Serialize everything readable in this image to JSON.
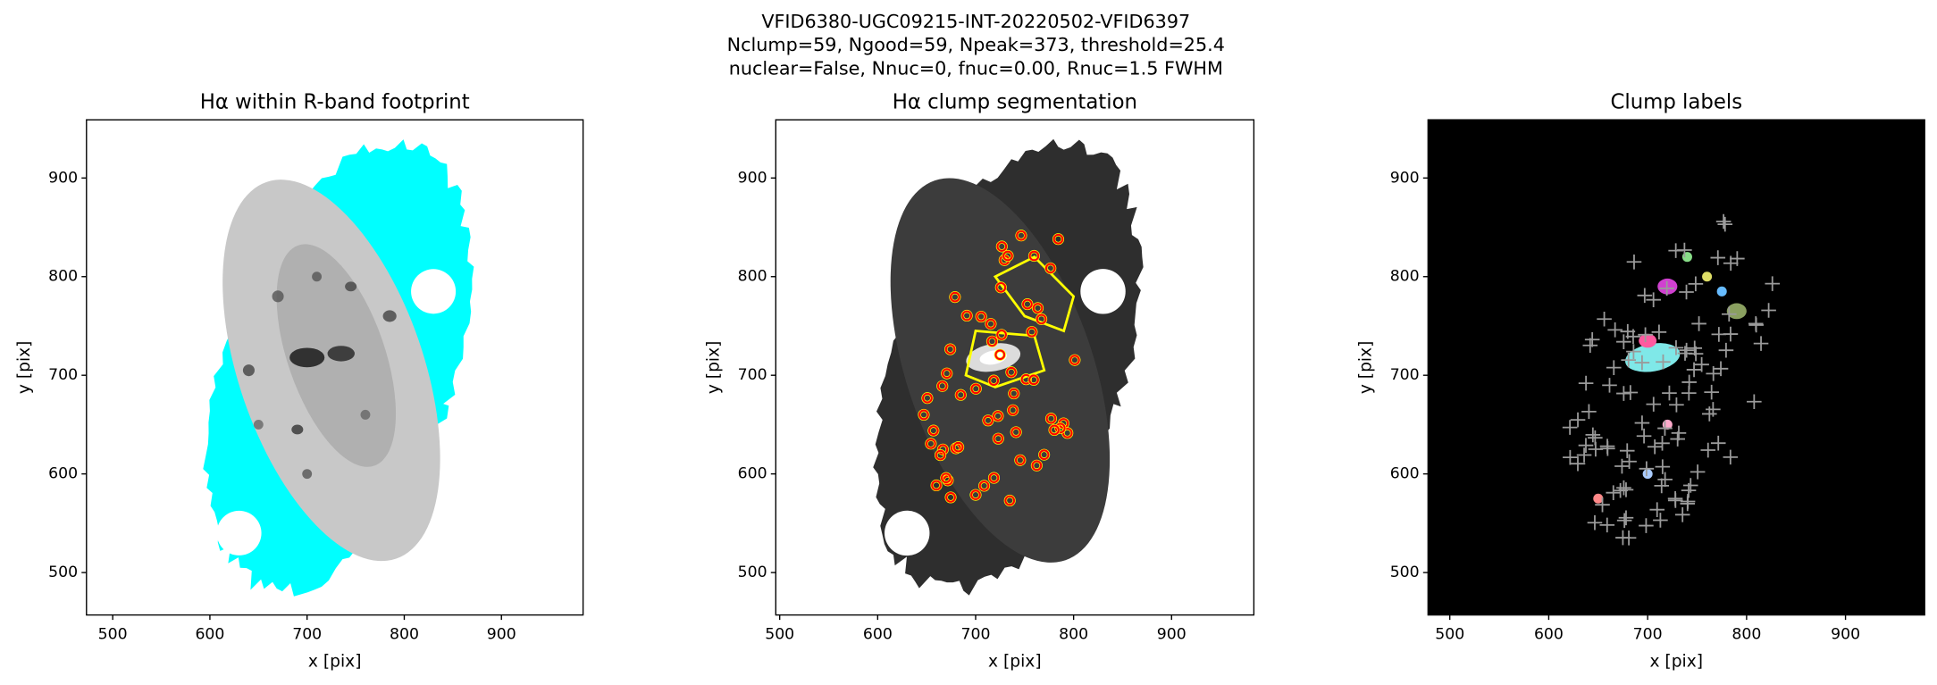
{
  "figure_title": [
    "VFID6380-UGC09215-INT-20220502-VFID6397",
    "Nclump=59, Ngood=59, Npeak=373, threshold=25.4",
    "nuclear=False, Nnuc=0, fnuc=0.00, Rnuc=1.5 FWHM"
  ],
  "chart_data": [
    {
      "type": "image",
      "title": "Hα within R-band footprint",
      "xlabel": "x [pix]",
      "ylabel": "y [pix]",
      "xlim": [
        473,
        984
      ],
      "ylim": [
        457,
        959
      ],
      "xticks": [
        500,
        600,
        700,
        800,
        900
      ],
      "yticks": [
        500,
        600,
        700,
        800,
        900
      ]
    },
    {
      "type": "image",
      "title": "Hα clump segmentation",
      "xlabel": "x [pix]",
      "ylabel": "y [pix]",
      "xlim": [
        496,
        984
      ],
      "ylim": [
        457,
        959
      ],
      "xticks": [
        500,
        600,
        700,
        800,
        900
      ],
      "yticks": [
        500,
        600,
        700,
        800,
        900
      ]
    },
    {
      "type": "image",
      "title": "Clump labels",
      "xlabel": "x [pix]",
      "ylabel": "y [pix]",
      "xlim": [
        478,
        980
      ],
      "ylim": [
        457,
        959
      ],
      "xticks": [
        500,
        600,
        700,
        800,
        900
      ],
      "yticks": [
        500,
        600,
        700,
        800,
        900
      ]
    }
  ]
}
